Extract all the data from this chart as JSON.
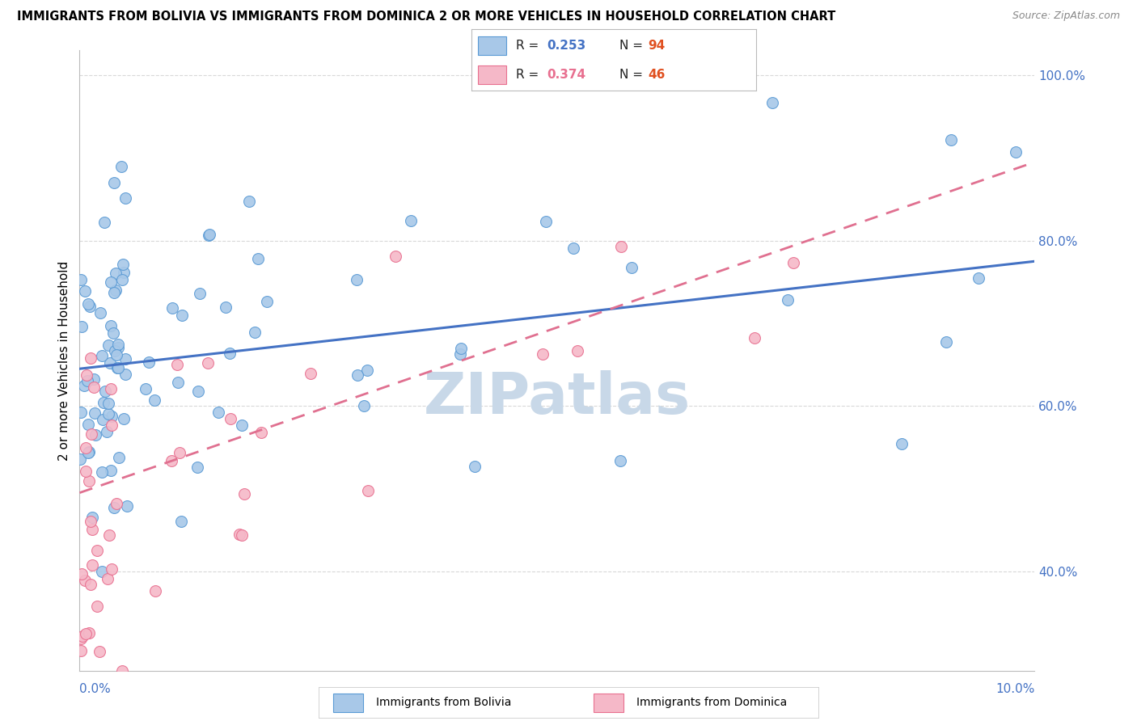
{
  "title": "IMMIGRANTS FROM BOLIVIA VS IMMIGRANTS FROM DOMINICA 2 OR MORE VEHICLES IN HOUSEHOLD CORRELATION CHART",
  "source": "Source: ZipAtlas.com",
  "ylabel": "2 or more Vehicles in Household",
  "bolivia_R": 0.253,
  "bolivia_N": 94,
  "dominica_R": 0.374,
  "dominica_N": 46,
  "bolivia_color": "#a8c8e8",
  "dominica_color": "#f5b8c8",
  "bolivia_edge_color": "#5b9bd5",
  "dominica_edge_color": "#e87090",
  "bolivia_line_color": "#4472c4",
  "dominica_line_color": "#e07090",
  "watermark": "ZIPatlas",
  "watermark_color": "#c8d8e8",
  "grid_color": "#d8d8d8",
  "right_tick_color": "#4472c4",
  "xmin": 0.0,
  "xmax": 0.1,
  "ymin": 0.28,
  "ymax": 1.03,
  "bolivia_trend_x0": 0.0,
  "bolivia_trend_y0": 0.645,
  "bolivia_trend_x1": 0.1,
  "bolivia_trend_y1": 0.775,
  "dominica_trend_x0": 0.0,
  "dominica_trend_y0": 0.495,
  "dominica_trend_x1": 0.1,
  "dominica_trend_y1": 0.895
}
